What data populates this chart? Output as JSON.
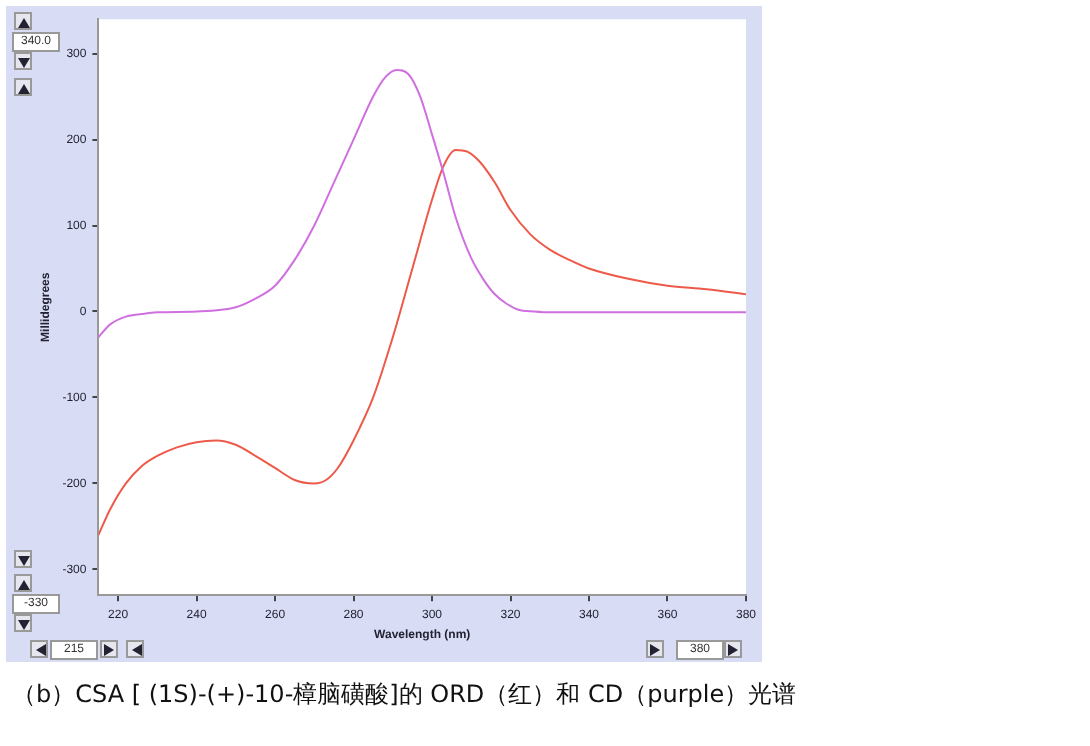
{
  "chart_data": {
    "type": "line",
    "title": "（b）CSA [ (1S)-(+)-10-樟脑磺酸]的 ORD（红）和 CD（purple）光谱",
    "xlabel": "Wavelength (nm)",
    "ylabel": "Millidegrees",
    "xlim": [
      215,
      380
    ],
    "xticks": [
      220,
      240,
      260,
      280,
      300,
      320,
      340,
      360,
      380
    ],
    "ylim": [
      -330,
      340
    ],
    "yticks": [
      -300,
      -200,
      -100,
      0,
      100,
      200,
      300
    ],
    "grid": false,
    "legend": false,
    "marker": "none",
    "line_style": "solid",
    "annotations": [
      "340.0",
      "-330",
      "215",
      "380"
    ],
    "series": [
      {
        "color": "#d070e0",
        "x": [
          215,
          218,
          222,
          226,
          230,
          240,
          250,
          255,
          260,
          265,
          270,
          275,
          280,
          285,
          288,
          291,
          294,
          297,
          300,
          303,
          306,
          310,
          313,
          316,
          319,
          322,
          326,
          330,
          340,
          360,
          380
        ],
        "values": [
          -30,
          -15,
          -6,
          -3,
          -1,
          0,
          5,
          15,
          30,
          60,
          100,
          150,
          200,
          250,
          272,
          281,
          276,
          250,
          206,
          160,
          110,
          62,
          38,
          20,
          9,
          2,
          0,
          -1,
          -1,
          -1,
          -1
        ]
      },
      {
        "color": "#ee5a4a",
        "x": [
          215,
          218,
          222,
          226,
          230,
          235,
          240,
          245,
          250,
          255,
          260,
          265,
          270,
          273,
          276,
          280,
          285,
          290,
          295,
          300,
          303,
          306,
          309,
          312,
          316,
          320,
          325,
          330,
          335,
          340,
          350,
          360,
          370,
          380
        ],
        "values": [
          -260,
          -230,
          -200,
          -180,
          -168,
          -158,
          -152,
          -150,
          -155,
          -168,
          -182,
          -196,
          -200,
          -196,
          -182,
          -150,
          -100,
          -30,
          50,
          130,
          170,
          188,
          186,
          175,
          150,
          118,
          90,
          72,
          60,
          50,
          38,
          30,
          26,
          20
        ]
      }
    ]
  }
}
